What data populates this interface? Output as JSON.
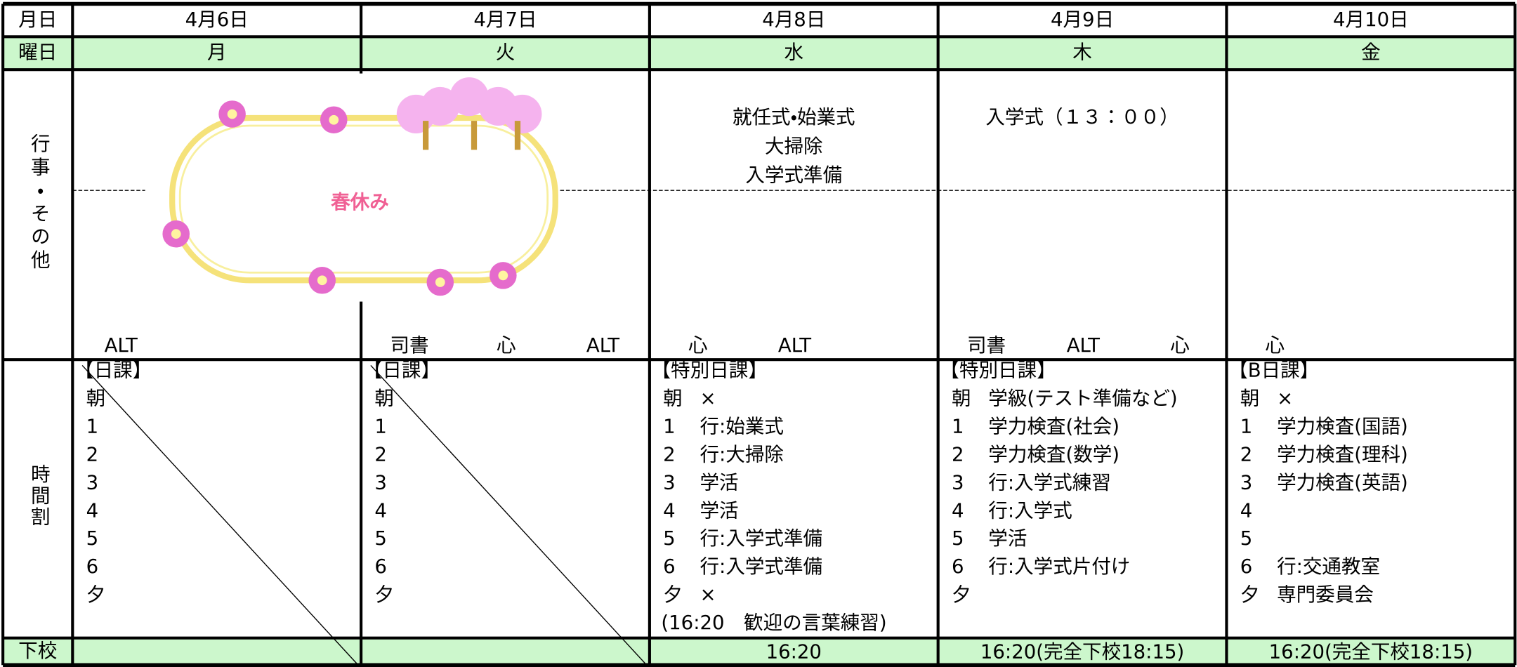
{
  "header": {
    "row_labels": [
      "月日",
      "曜日",
      "行事・その他",
      "時間割",
      "下校"
    ]
  },
  "spring_break_banner": "春休み",
  "days": [
    {
      "date": "4月6日",
      "weekday": "月",
      "staff": [
        "ALT"
      ],
      "schedule_title": "【日課】",
      "periods": [
        {
          "label": "朝"
        },
        {
          "label": "1"
        },
        {
          "label": "2"
        },
        {
          "label": "3"
        },
        {
          "label": "4"
        },
        {
          "label": "5"
        },
        {
          "label": "6"
        },
        {
          "label": "夕"
        }
      ]
    },
    {
      "date": "4月7日",
      "weekday": "火",
      "staff": [
        "司書",
        "心",
        "ALT"
      ],
      "schedule_title": "【日課】",
      "periods": [
        {
          "label": "朝"
        },
        {
          "label": "1"
        },
        {
          "label": "2"
        },
        {
          "label": "3"
        },
        {
          "label": "4"
        },
        {
          "label": "5"
        },
        {
          "label": "6"
        },
        {
          "label": "夕"
        }
      ]
    },
    {
      "date": "4月8日",
      "weekday": "水",
      "events": [
        "就任式・始業式",
        "大掃除",
        "入学式準備"
      ],
      "staff": [
        "心",
        "ALT"
      ],
      "schedule_title": "【特別日課】",
      "periods": [
        {
          "label": "朝",
          "content": "×"
        },
        {
          "label": "1",
          "content": "行:始業式"
        },
        {
          "label": "2",
          "content": "行:大掃除"
        },
        {
          "label": "3",
          "content": "学活"
        },
        {
          "label": "4",
          "content": "学活"
        },
        {
          "label": "5",
          "content": "行:入学式準備"
        },
        {
          "label": "6",
          "content": "行:入学式準備"
        },
        {
          "label": "夕",
          "content": "×"
        }
      ],
      "note": "(16:20　歓迎の言葉練習)",
      "dismissal": "16:20"
    },
    {
      "date": "4月9日",
      "weekday": "木",
      "events": [
        "入学式（１３：００）"
      ],
      "staff": [
        "司書",
        "ALT",
        "心"
      ],
      "schedule_title": "【特別日課】",
      "periods": [
        {
          "label": "朝",
          "content": "学級(テスト準備など)"
        },
        {
          "label": "1",
          "content": "学力検査(社会)"
        },
        {
          "label": "2",
          "content": "学力検査(数学)"
        },
        {
          "label": "3",
          "content": "行:入学式練習"
        },
        {
          "label": "4",
          "content": "行:入学式"
        },
        {
          "label": "5",
          "content": "学活"
        },
        {
          "label": "6",
          "content": "行:入学式片付け"
        },
        {
          "label": "夕"
        }
      ],
      "dismissal": "16:20(完全下校18:15)"
    },
    {
      "date": "4月10日",
      "weekday": "金",
      "staff": [
        "心"
      ],
      "schedule_title": "【B日課】",
      "periods": [
        {
          "label": "朝",
          "content": "×"
        },
        {
          "label": "1",
          "content": "学力検査(国語)"
        },
        {
          "label": "2",
          "content": "学力検査(理科)"
        },
        {
          "label": "3",
          "content": "学力検査(英語)"
        },
        {
          "label": "4"
        },
        {
          "label": "5"
        },
        {
          "label": "6",
          "content": "行:交通教室"
        },
        {
          "label": "夕",
          "content": "専門委員会"
        }
      ],
      "dismissal": "16:20(完全下校18:15)"
    }
  ]
}
